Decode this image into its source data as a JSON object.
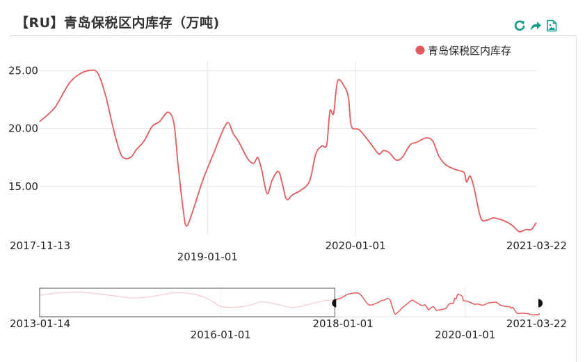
{
  "title": "【RU】青岛保税区内库存（万吨)",
  "toolbar": {
    "refresh_icon": "refresh-icon",
    "share_icon": "share-icon",
    "save_image_icon": "save-image-icon",
    "accent_color": "#1a9c8c"
  },
  "chart_data": {
    "type": "line",
    "legend_position": "top-right",
    "series": [
      {
        "name": "青岛保税区内库存",
        "color": "#e05a5e",
        "points": [
          [
            "2017-11-13",
            20.6
          ],
          [
            "2017-12-20",
            21.8
          ],
          [
            "2018-01-25",
            23.9
          ],
          [
            "2018-02-20",
            24.7
          ],
          [
            "2018-03-15",
            25.0
          ],
          [
            "2018-04-05",
            24.8
          ],
          [
            "2018-04-25",
            22.8
          ],
          [
            "2018-05-15",
            19.8
          ],
          [
            "2018-06-01",
            17.8
          ],
          [
            "2018-06-15",
            17.4
          ],
          [
            "2018-06-28",
            17.6
          ],
          [
            "2018-07-10",
            18.2
          ],
          [
            "2018-07-28",
            18.9
          ],
          [
            "2018-08-18",
            20.2
          ],
          [
            "2018-09-05",
            20.6
          ],
          [
            "2018-09-25",
            21.4
          ],
          [
            "2018-10-10",
            20.5
          ],
          [
            "2018-10-20",
            17.0
          ],
          [
            "2018-11-02",
            13.0
          ],
          [
            "2018-11-10",
            11.6
          ],
          [
            "2018-11-25",
            12.8
          ],
          [
            "2018-12-20",
            15.5
          ],
          [
            "2019-01-20",
            18.2
          ],
          [
            "2019-02-10",
            20.0
          ],
          [
            "2019-02-22",
            20.5
          ],
          [
            "2019-03-05",
            19.6
          ],
          [
            "2019-03-20",
            18.8
          ],
          [
            "2019-04-10",
            17.4
          ],
          [
            "2019-04-25",
            17.0
          ],
          [
            "2019-05-05",
            17.5
          ],
          [
            "2019-05-15",
            16.4
          ],
          [
            "2019-05-28",
            14.4
          ],
          [
            "2019-06-10",
            15.6
          ],
          [
            "2019-06-25",
            16.3
          ],
          [
            "2019-07-05",
            15.2
          ],
          [
            "2019-07-15",
            13.9
          ],
          [
            "2019-07-30",
            14.3
          ],
          [
            "2019-08-20",
            14.7
          ],
          [
            "2019-09-10",
            15.5
          ],
          [
            "2019-09-25",
            17.8
          ],
          [
            "2019-10-10",
            18.5
          ],
          [
            "2019-10-22",
            18.6
          ],
          [
            "2019-10-30",
            21.5
          ],
          [
            "2019-11-08",
            21.3
          ],
          [
            "2019-11-18",
            24.1
          ],
          [
            "2019-12-05",
            23.6
          ],
          [
            "2019-12-15",
            22.6
          ],
          [
            "2019-12-22",
            20.2
          ],
          [
            "2020-01-10",
            19.9
          ],
          [
            "2020-02-01",
            19.0
          ],
          [
            "2020-02-22",
            18.0
          ],
          [
            "2020-03-01",
            17.8
          ],
          [
            "2020-03-10",
            18.1
          ],
          [
            "2020-03-25",
            17.9
          ],
          [
            "2020-04-10",
            17.3
          ],
          [
            "2020-04-25",
            17.5
          ],
          [
            "2020-05-15",
            18.6
          ],
          [
            "2020-05-30",
            18.8
          ],
          [
            "2020-06-10",
            19.0
          ],
          [
            "2020-06-25",
            19.2
          ],
          [
            "2020-07-10",
            18.9
          ],
          [
            "2020-07-25",
            17.6
          ],
          [
            "2020-08-10",
            16.9
          ],
          [
            "2020-08-25",
            16.6
          ],
          [
            "2020-09-10",
            16.4
          ],
          [
            "2020-09-25",
            16.2
          ],
          [
            "2020-10-01",
            15.4
          ],
          [
            "2020-10-10",
            15.9
          ],
          [
            "2020-10-20",
            14.8
          ],
          [
            "2020-11-05",
            12.3
          ],
          [
            "2020-11-20",
            12.1
          ],
          [
            "2020-12-05",
            12.3
          ],
          [
            "2020-12-20",
            12.2
          ],
          [
            "2021-01-05",
            12.0
          ],
          [
            "2021-01-20",
            11.7
          ],
          [
            "2021-02-01",
            11.3
          ],
          [
            "2021-02-10",
            11.1
          ],
          [
            "2021-02-25",
            11.3
          ],
          [
            "2021-03-10",
            11.3
          ],
          [
            "2021-03-22",
            11.9
          ]
        ]
      }
    ],
    "y_ticks": [
      "15.00",
      "20.00",
      "25.00"
    ],
    "y_tick_values": [
      15,
      20,
      25
    ],
    "ylim": [
      10.8,
      25.8
    ],
    "x_range": [
      "2017-11-13",
      "2021-03-22"
    ],
    "x_labels": [
      {
        "text": "2017-11-13",
        "date": "2017-11-13",
        "row": 0,
        "anchor": "start"
      },
      {
        "text": "2019-01-01",
        "date": "2019-01-01",
        "row": 1,
        "anchor": "middle"
      },
      {
        "text": "2020-01-01",
        "date": "2020-01-01",
        "row": 0,
        "anchor": "middle"
      },
      {
        "text": "2021-03-22",
        "date": "2021-03-22",
        "row": 0,
        "anchor": "end"
      }
    ],
    "x_gridlines": [
      "2019-01-01",
      "2020-01-01"
    ],
    "navigator": {
      "x_range": [
        "2013-01-14",
        "2021-03-22"
      ],
      "selected_range": [
        "2017-11-13",
        "2021-03-22"
      ],
      "ylim": [
        10,
        28
      ],
      "history_points": [
        [
          "2013-01-14",
          23.5
        ],
        [
          "2013-05-01",
          25.0
        ],
        [
          "2013-09-01",
          25.5
        ],
        [
          "2014-01-01",
          24.5
        ],
        [
          "2014-05-01",
          22.8
        ],
        [
          "2014-08-01",
          21.8
        ],
        [
          "2014-12-01",
          23.0
        ],
        [
          "2015-04-01",
          25.2
        ],
        [
          "2015-08-01",
          24.0
        ],
        [
          "2015-11-01",
          20.5
        ],
        [
          "2016-01-01",
          16.5
        ],
        [
          "2016-04-01",
          16.0
        ],
        [
          "2016-07-01",
          17.5
        ],
        [
          "2016-09-01",
          19.5
        ],
        [
          "2016-12-01",
          18.0
        ],
        [
          "2017-03-01",
          15.8
        ],
        [
          "2017-06-01",
          17.5
        ],
        [
          "2017-09-01",
          20.0
        ],
        [
          "2017-12-01",
          21.0
        ],
        [
          "2018-04-01",
          24.5
        ],
        [
          "2018-09-01",
          21.5
        ],
        [
          "2018-11-15",
          14.5
        ],
        [
          "2019-03-01",
          20.0
        ],
        [
          "2019-06-01",
          17.0
        ],
        [
          "2019-08-01",
          16.5
        ],
        [
          "2019-11-01",
          21.5
        ],
        [
          "2020-02-01",
          19.0
        ],
        [
          "2020-06-01",
          19.5
        ],
        [
          "2020-09-01",
          16.5
        ],
        [
          "2020-11-01",
          15.0
        ],
        [
          "2021-01-01",
          14.5
        ],
        [
          "2021-03-22",
          14.2
        ]
      ],
      "x_labels": [
        {
          "text": "2013-01-14",
          "date": "2013-01-14",
          "row": 0,
          "anchor": "start"
        },
        {
          "text": "2016-01-01",
          "date": "2016-01-01",
          "row": 1,
          "anchor": "middle"
        },
        {
          "text": "2018-01-01",
          "date": "2018-01-01",
          "row": 0,
          "anchor": "middle"
        },
        {
          "text": "2020-01-01",
          "date": "2020-01-01",
          "row": 1,
          "anchor": "middle"
        },
        {
          "text": "2021-03-22",
          "date": "2021-03-22",
          "row": 0,
          "anchor": "end"
        }
      ],
      "x_gridlines": [
        "2016-01-01",
        "2020-01-01"
      ]
    }
  }
}
